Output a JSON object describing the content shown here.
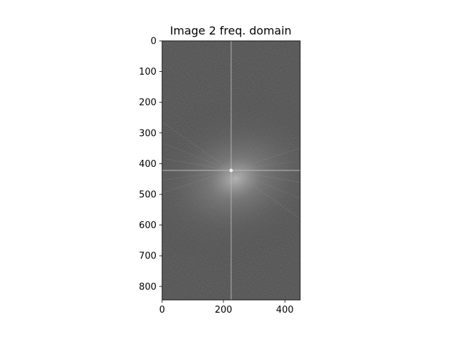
{
  "chart_data": {
    "type": "heatmap",
    "title": "Image 2 freq. domain",
    "xlabel": "",
    "ylabel": "",
    "colormap": "gray",
    "image_shape": [
      844,
      450
    ],
    "xlim": [
      0,
      450
    ],
    "ylim": [
      844,
      0
    ],
    "x_ticks": [
      0,
      200,
      400
    ],
    "y_ticks": [
      0,
      100,
      200,
      300,
      400,
      500,
      600,
      700,
      800
    ],
    "center": {
      "x": 225,
      "y": 422
    },
    "background_color": "#474747",
    "grid": false,
    "legend": "none"
  }
}
